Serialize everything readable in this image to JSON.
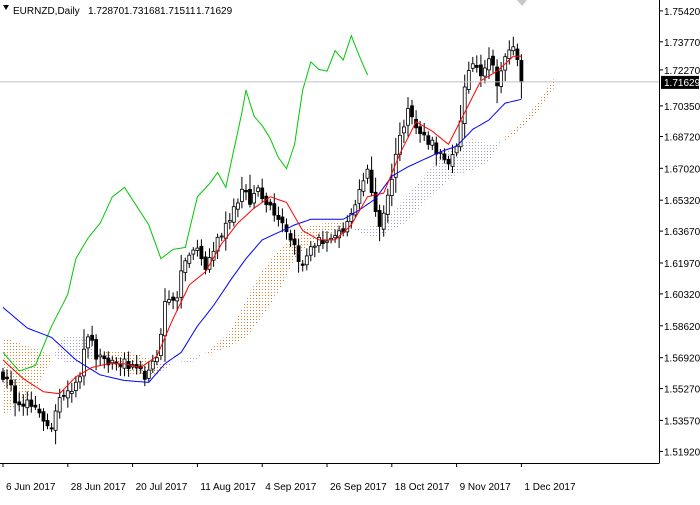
{
  "chart_data": {
    "type": "candlestick",
    "symbol": "EURNZD,Daily",
    "ohlc_header": {
      "open": "1.72870",
      "high": "1.73168",
      "low": "1.71511",
      "close": "1.71629"
    },
    "current_price": 1.71629,
    "current_price_label": "1.71629",
    "indicator": "Ichimoku Kinko Hyo",
    "ylim": [
      1.513,
      1.76
    ],
    "y_ticks": [
      1.7542,
      1.7377,
      1.7227,
      1.7035,
      1.6872,
      1.6702,
      1.6532,
      1.6367,
      1.6197,
      1.6032,
      1.5862,
      1.5692,
      1.5527,
      1.5357,
      1.5192
    ],
    "y_tick_labels": [
      "1.75420",
      "1.73770",
      "1.72270",
      "1.70350",
      "1.68720",
      "1.67020",
      "1.65320",
      "1.63670",
      "1.61970",
      "1.60320",
      "1.58620",
      "1.56920",
      "1.55270",
      "1.53570",
      "1.51920"
    ],
    "x_tick_labels": [
      {
        "label": "6 Jun 2017",
        "index": 0
      },
      {
        "label": "28 Jun 2017",
        "index": 16
      },
      {
        "label": "20 Jul 2017",
        "index": 32
      },
      {
        "label": "11 Aug 2017",
        "index": 48
      },
      {
        "label": "4 Sep 2017",
        "index": 64
      },
      {
        "label": "26 Sep 2017",
        "index": 80
      },
      {
        "label": "18 Oct 2017",
        "index": 96
      },
      {
        "label": "9 Nov 2017",
        "index": 112
      },
      {
        "label": "1 Dec 2017",
        "index": 128
      }
    ],
    "close_anchors": [
      [
        0,
        1.56
      ],
      [
        3,
        1.548
      ],
      [
        6,
        1.545
      ],
      [
        9,
        1.538
      ],
      [
        12,
        1.533
      ],
      [
        15,
        1.551
      ],
      [
        17,
        1.554
      ],
      [
        19,
        1.561
      ],
      [
        21,
        1.582
      ],
      [
        23,
        1.57
      ],
      [
        25,
        1.566
      ],
      [
        27,
        1.567
      ],
      [
        30,
        1.566
      ],
      [
        33,
        1.561
      ],
      [
        36,
        1.56
      ],
      [
        38,
        1.57
      ],
      [
        40,
        1.598
      ],
      [
        43,
        1.603
      ],
      [
        45,
        1.622
      ],
      [
        48,
        1.627
      ],
      [
        50,
        1.617
      ],
      [
        53,
        1.632
      ],
      [
        56,
        1.645
      ],
      [
        59,
        1.658
      ],
      [
        61,
        1.652
      ],
      [
        63,
        1.66
      ],
      [
        65,
        1.653
      ],
      [
        68,
        1.645
      ],
      [
        70,
        1.638
      ],
      [
        72,
        1.629
      ],
      [
        74,
        1.617
      ],
      [
        76,
        1.629
      ],
      [
        79,
        1.632
      ],
      [
        82,
        1.632
      ],
      [
        84,
        1.636
      ],
      [
        86,
        1.645
      ],
      [
        88,
        1.66
      ],
      [
        90,
        1.668
      ],
      [
        91,
        1.657
      ],
      [
        93,
        1.64
      ],
      [
        95,
        1.655
      ],
      [
        97,
        1.678
      ],
      [
        99,
        1.695
      ],
      [
        100,
        1.705
      ],
      [
        102,
        1.691
      ],
      [
        104,
        1.687
      ],
      [
        106,
        1.684
      ],
      [
        108,
        1.677
      ],
      [
        110,
        1.67
      ],
      [
        112,
        1.683
      ],
      [
        114,
        1.712
      ],
      [
        116,
        1.727
      ],
      [
        118,
        1.722
      ],
      [
        120,
        1.73
      ],
      [
        122,
        1.717
      ],
      [
        124,
        1.728
      ],
      [
        126,
        1.736
      ],
      [
        127,
        1.727
      ],
      [
        128,
        1.716
      ]
    ],
    "tenkan_anchors": [
      [
        0,
        1.568
      ],
      [
        5,
        1.558
      ],
      [
        10,
        1.551
      ],
      [
        14,
        1.55
      ],
      [
        18,
        1.559
      ],
      [
        22,
        1.564
      ],
      [
        26,
        1.566
      ],
      [
        30,
        1.566
      ],
      [
        34,
        1.564
      ],
      [
        38,
        1.57
      ],
      [
        42,
        1.59
      ],
      [
        46,
        1.608
      ],
      [
        50,
        1.615
      ],
      [
        54,
        1.63
      ],
      [
        58,
        1.641
      ],
      [
        62,
        1.649
      ],
      [
        66,
        1.655
      ],
      [
        70,
        1.652
      ],
      [
        74,
        1.637
      ],
      [
        78,
        1.632
      ],
      [
        82,
        1.632
      ],
      [
        86,
        1.64
      ],
      [
        90,
        1.655
      ],
      [
        94,
        1.657
      ],
      [
        98,
        1.678
      ],
      [
        102,
        1.695
      ],
      [
        106,
        1.69
      ],
      [
        110,
        1.683
      ],
      [
        114,
        1.7
      ],
      [
        118,
        1.717
      ],
      [
        122,
        1.722
      ],
      [
        126,
        1.73
      ],
      [
        128,
        1.73
      ]
    ],
    "kijun_anchors": [
      [
        0,
        1.596
      ],
      [
        6,
        1.585
      ],
      [
        12,
        1.58
      ],
      [
        18,
        1.568
      ],
      [
        24,
        1.56
      ],
      [
        30,
        1.557
      ],
      [
        36,
        1.556
      ],
      [
        40,
        1.566
      ],
      [
        44,
        1.572
      ],
      [
        48,
        1.586
      ],
      [
        52,
        1.597
      ],
      [
        56,
        1.61
      ],
      [
        60,
        1.622
      ],
      [
        64,
        1.632
      ],
      [
        68,
        1.636
      ],
      [
        72,
        1.64
      ],
      [
        76,
        1.643
      ],
      [
        80,
        1.643
      ],
      [
        84,
        1.643
      ],
      [
        88,
        1.648
      ],
      [
        92,
        1.654
      ],
      [
        96,
        1.666
      ],
      [
        100,
        1.671
      ],
      [
        104,
        1.675
      ],
      [
        108,
        1.679
      ],
      [
        112,
        1.682
      ],
      [
        116,
        1.691
      ],
      [
        120,
        1.696
      ],
      [
        124,
        1.705
      ],
      [
        128,
        1.707
      ]
    ],
    "chikou_anchors": [
      [
        0,
        1.572
      ],
      [
        4,
        1.562
      ],
      [
        8,
        1.565
      ],
      [
        12,
        1.586
      ],
      [
        16,
        1.603
      ],
      [
        18,
        1.622
      ],
      [
        21,
        1.633
      ],
      [
        24,
        1.641
      ],
      [
        27,
        1.655
      ],
      [
        30,
        1.66
      ],
      [
        33,
        1.65
      ],
      [
        36,
        1.64
      ],
      [
        39,
        1.622
      ],
      [
        42,
        1.627
      ],
      [
        45,
        1.628
      ],
      [
        48,
        1.655
      ],
      [
        51,
        1.662
      ],
      [
        53,
        1.668
      ],
      [
        55,
        1.66
      ],
      [
        57,
        1.68
      ],
      [
        59,
        1.7
      ],
      [
        60,
        1.712
      ],
      [
        62,
        1.698
      ],
      [
        64,
        1.693
      ],
      [
        66,
        1.686
      ],
      [
        68,
        1.676
      ],
      [
        70,
        1.67
      ],
      [
        72,
        1.683
      ],
      [
        74,
        1.712
      ],
      [
        76,
        1.727
      ],
      [
        78,
        1.723
      ],
      [
        80,
        1.722
      ],
      [
        82,
        1.733
      ],
      [
        84,
        1.728
      ],
      [
        86,
        1.741
      ],
      [
        88,
        1.73
      ],
      [
        90,
        1.72
      ]
    ],
    "span_a_anchors": [
      [
        0,
        1.58
      ],
      [
        8,
        1.574
      ],
      [
        15,
        1.567
      ],
      [
        20,
        1.566
      ],
      [
        26,
        1.573
      ],
      [
        32,
        1.572
      ],
      [
        38,
        1.567
      ],
      [
        42,
        1.567
      ],
      [
        47,
        1.567
      ],
      [
        52,
        1.575
      ],
      [
        56,
        1.583
      ],
      [
        60,
        1.6
      ],
      [
        64,
        1.616
      ],
      [
        68,
        1.626
      ],
      [
        72,
        1.634
      ],
      [
        76,
        1.64
      ],
      [
        80,
        1.641
      ],
      [
        84,
        1.641
      ],
      [
        88,
        1.636
      ],
      [
        92,
        1.633
      ],
      [
        96,
        1.637
      ],
      [
        100,
        1.642
      ],
      [
        104,
        1.652
      ],
      [
        108,
        1.66
      ],
      [
        112,
        1.667
      ],
      [
        116,
        1.669
      ],
      [
        120,
        1.674
      ],
      [
        124,
        1.687
      ],
      [
        128,
        1.695
      ],
      [
        132,
        1.705
      ],
      [
        136,
        1.718
      ]
    ],
    "span_b_anchors": [
      [
        0,
        1.538
      ],
      [
        8,
        1.552
      ],
      [
        15,
        1.581
      ],
      [
        20,
        1.58
      ],
      [
        26,
        1.566
      ],
      [
        32,
        1.56
      ],
      [
        38,
        1.56
      ],
      [
        42,
        1.566
      ],
      [
        47,
        1.57
      ],
      [
        52,
        1.572
      ],
      [
        56,
        1.575
      ],
      [
        60,
        1.58
      ],
      [
        64,
        1.591
      ],
      [
        68,
        1.604
      ],
      [
        72,
        1.622
      ],
      [
        76,
        1.63
      ],
      [
        80,
        1.635
      ],
      [
        84,
        1.638
      ],
      [
        88,
        1.638
      ],
      [
        92,
        1.64
      ],
      [
        96,
        1.647
      ],
      [
        100,
        1.656
      ],
      [
        104,
        1.666
      ],
      [
        108,
        1.678
      ],
      [
        112,
        1.682
      ],
      [
        116,
        1.686
      ],
      [
        120,
        1.683
      ],
      [
        124,
        1.685
      ],
      [
        128,
        1.691
      ],
      [
        132,
        1.7
      ],
      [
        136,
        1.713
      ]
    ],
    "colors": {
      "background": "#FFFFFF",
      "candle": "#000000",
      "tenkan": "#FF0000",
      "kijun": "#0000FF",
      "chikou": "#00C800",
      "cloud_bull": "#D9802B",
      "cloud_bear": "#B8B8D8",
      "price_line": "#C0C0C0",
      "price_label_bg": "#000000",
      "price_label_text": "#FFFFFF"
    }
  }
}
